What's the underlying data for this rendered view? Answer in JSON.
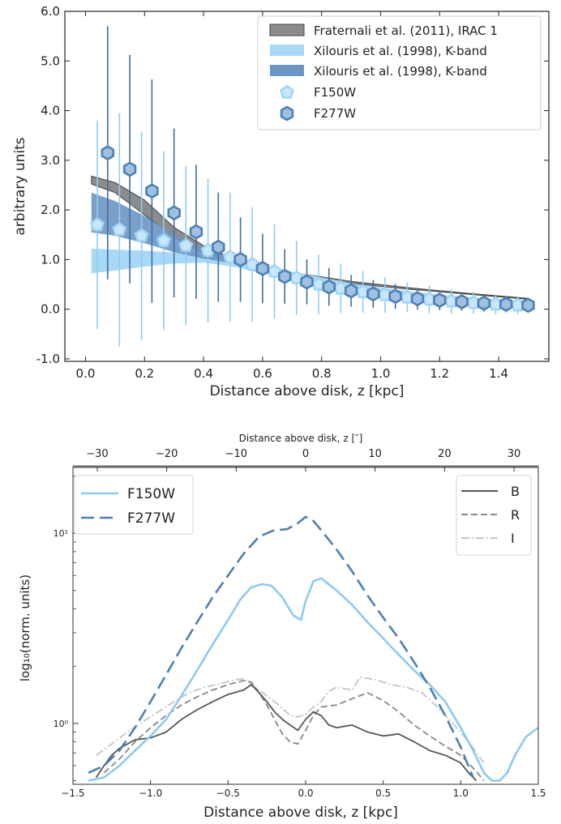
{
  "chart_data": [
    {
      "type": "scatter",
      "title": "",
      "xlabel": "Distance above disk, z [kpc]",
      "ylabel": "arbitrary units",
      "xlim": [
        -0.07,
        1.57
      ],
      "ylim": [
        -1.05,
        6.0
      ],
      "x_ticks": [
        0.0,
        0.2,
        0.4,
        0.6,
        0.8,
        1.0,
        1.2,
        1.4
      ],
      "x_tick_labels": [
        "0.0",
        "0.2",
        "0.4",
        "0.6",
        "0.8",
        "1.0",
        "1.2",
        "1.4"
      ],
      "y_ticks": [
        -1.0,
        0.0,
        1.0,
        2.0,
        3.0,
        4.0,
        5.0,
        6.0
      ],
      "y_tick_labels": [
        "-1.0",
        "0.0",
        "1.0",
        "2.0",
        "3.0",
        "4.0",
        "5.0",
        "6.0"
      ],
      "grid": false,
      "legend_position": "top-right",
      "legend": [
        "Fraternali et al. (2011), IRAC 1",
        "Xilouris et al. (1998), K-band",
        "Xilouris et al. (1998), K-band",
        "F150W",
        "F277W"
      ],
      "bands": [
        {
          "name": "Fraternali et al. (2011), IRAC 1",
          "color": "#8c8c8c",
          "x": [
            0.02,
            0.1,
            0.2,
            0.3,
            0.4,
            0.5,
            0.7,
            0.9,
            1.1,
            1.3,
            1.5
          ],
          "lower": [
            2.52,
            2.35,
            1.9,
            1.45,
            1.12,
            0.92,
            0.68,
            0.52,
            0.4,
            0.3,
            0.2
          ],
          "upper": [
            2.68,
            2.55,
            2.2,
            1.65,
            1.28,
            1.02,
            0.74,
            0.56,
            0.43,
            0.32,
            0.22
          ]
        },
        {
          "name": "Xilouris et al. (1998), K-band",
          "color": "#a9d8f7",
          "x": [
            0.02,
            0.1,
            0.2,
            0.3,
            0.4,
            0.5,
            0.7,
            0.9,
            1.1,
            1.3,
            1.5
          ],
          "lower": [
            0.72,
            0.78,
            0.86,
            0.92,
            0.94,
            0.86,
            0.58,
            0.4,
            0.27,
            0.18,
            0.12
          ],
          "upper": [
            1.22,
            1.2,
            1.18,
            1.14,
            1.1,
            1.0,
            0.76,
            0.52,
            0.36,
            0.24,
            0.16
          ]
        },
        {
          "name": "Xilouris et al. (1998), K-band",
          "color": "#6b96c4",
          "x": [
            0.02,
            0.1,
            0.2,
            0.3,
            0.4,
            0.5
          ],
          "lower": [
            1.55,
            1.48,
            1.33,
            1.15,
            1.02,
            0.92
          ],
          "upper": [
            2.35,
            2.18,
            1.88,
            1.5,
            1.22,
            1.02
          ]
        }
      ],
      "series": [
        {
          "name": "F150W",
          "marker": "pentagon",
          "color": "#9fd3f5",
          "x": [
            0.04,
            0.115,
            0.19,
            0.265,
            0.34,
            0.415,
            0.49,
            0.565,
            0.64,
            0.715,
            0.79,
            0.865,
            0.94,
            1.015,
            1.09,
            1.165,
            1.24,
            1.315,
            1.39,
            1.465
          ],
          "y": [
            1.7,
            1.6,
            1.48,
            1.38,
            1.28,
            1.18,
            1.05,
            0.9,
            0.76,
            0.63,
            0.5,
            0.42,
            0.35,
            0.29,
            0.24,
            0.2,
            0.16,
            0.13,
            0.1,
            0.08
          ],
          "err": [
            2.1,
            2.35,
            2.1,
            1.8,
            1.6,
            1.45,
            1.3,
            1.15,
            0.95,
            0.75,
            0.6,
            0.5,
            0.42,
            0.36,
            0.3,
            0.28,
            0.25,
            0.22,
            0.2,
            0.18
          ]
        },
        {
          "name": "F277W",
          "marker": "hexagon",
          "color": "#4d80b5",
          "x": [
            0.075,
            0.15,
            0.225,
            0.3,
            0.375,
            0.45,
            0.525,
            0.6,
            0.675,
            0.75,
            0.825,
            0.9,
            0.975,
            1.05,
            1.125,
            1.2,
            1.275,
            1.35,
            1.425,
            1.5
          ],
          "y": [
            3.15,
            2.82,
            2.38,
            1.94,
            1.56,
            1.25,
            1.0,
            0.82,
            0.66,
            0.55,
            0.45,
            0.37,
            0.31,
            0.26,
            0.21,
            0.18,
            0.15,
            0.12,
            0.1,
            0.08
          ],
          "err": [
            2.55,
            2.3,
            2.25,
            1.7,
            1.35,
            1.1,
            0.85,
            0.7,
            0.55,
            0.45,
            0.38,
            0.32,
            0.28,
            0.25,
            0.22,
            0.2,
            0.18,
            0.17,
            0.16,
            0.15
          ]
        }
      ]
    },
    {
      "type": "line",
      "title": "",
      "xlabel": "Distance above disk, z [kpc]",
      "x2label": "Distance above disk, z [″]",
      "ylabel": "log₁₀(norm. units)",
      "xlim": [
        -1.5,
        1.5
      ],
      "x2lim": [
        -33.5,
        33.5
      ],
      "ylim_log10": [
        -0.32,
        1.35
      ],
      "yscale": "log",
      "x_ticks": [
        -1.5,
        -1.0,
        -0.5,
        0.0,
        0.5,
        1.0,
        1.5
      ],
      "x_tick_labels": [
        "−1.5",
        "−1.0",
        "−0.5",
        "0.0",
        "0.5",
        "1.0",
        "1.5"
      ],
      "x2_ticks": [
        -30,
        -20,
        -10,
        0,
        10,
        20,
        30
      ],
      "x2_tick_labels": [
        "−30",
        "−20",
        "−10",
        "0",
        "10",
        "20",
        "30"
      ],
      "y_ticks": [
        1,
        10
      ],
      "y_tick_labels": [
        "10⁰",
        "10¹"
      ],
      "grid": false,
      "legend_position": "upper-left and upper-right",
      "legend_left": [
        "F150W",
        "F277W"
      ],
      "legend_right": [
        "B",
        "R",
        "I"
      ],
      "series": [
        {
          "name": "F150W",
          "style": "solid",
          "color": "#8dcaf0",
          "x": [
            -1.4,
            -1.3,
            -1.2,
            -1.1,
            -1.0,
            -0.9,
            -0.8,
            -0.7,
            -0.6,
            -0.5,
            -0.42,
            -0.35,
            -0.28,
            -0.22,
            -0.15,
            -0.08,
            -0.03,
            0.0,
            0.05,
            0.1,
            0.2,
            0.3,
            0.4,
            0.5,
            0.6,
            0.7,
            0.8,
            0.9,
            1.0,
            1.08,
            1.15,
            1.2,
            1.25,
            1.3,
            1.35,
            1.42,
            1.5
          ],
          "y": [
            0.5,
            0.52,
            0.6,
            0.72,
            0.86,
            1.05,
            1.4,
            1.9,
            2.6,
            3.5,
            4.5,
            5.2,
            5.4,
            5.3,
            4.6,
            3.7,
            3.5,
            4.4,
            5.6,
            5.8,
            5.0,
            4.2,
            3.4,
            2.8,
            2.3,
            1.9,
            1.6,
            1.3,
            0.95,
            0.72,
            0.55,
            0.5,
            0.5,
            0.55,
            0.68,
            0.85,
            0.95
          ]
        },
        {
          "name": "F277W",
          "style": "dashed",
          "color": "#4f7faf",
          "x": [
            -1.4,
            -1.3,
            -1.2,
            -1.1,
            -1.0,
            -0.9,
            -0.8,
            -0.7,
            -0.6,
            -0.5,
            -0.4,
            -0.3,
            -0.2,
            -0.12,
            -0.05,
            0.0,
            0.05,
            0.1,
            0.2,
            0.3,
            0.4,
            0.5,
            0.6,
            0.7,
            0.8,
            0.9,
            1.0,
            1.08
          ],
          "y": [
            0.55,
            0.6,
            0.72,
            0.95,
            1.3,
            1.8,
            2.5,
            3.4,
            4.6,
            6.0,
            7.8,
            9.6,
            10.4,
            10.5,
            11.3,
            12.2,
            11.6,
            10.4,
            8.2,
            6.3,
            4.7,
            3.6,
            2.8,
            2.1,
            1.55,
            1.1,
            0.75,
            0.52
          ]
        },
        {
          "name": "B",
          "style": "solid",
          "color": "#555555",
          "x": [
            -1.35,
            -1.3,
            -1.25,
            -1.2,
            -1.1,
            -1.0,
            -0.9,
            -0.8,
            -0.7,
            -0.6,
            -0.5,
            -0.4,
            -0.35,
            -0.3,
            -0.25,
            -0.2,
            -0.15,
            -0.1,
            -0.05,
            0.0,
            0.05,
            0.1,
            0.15,
            0.2,
            0.3,
            0.4,
            0.5,
            0.6,
            0.7,
            0.8,
            0.9,
            1.0,
            1.05,
            1.1
          ],
          "y": [
            0.52,
            0.6,
            0.68,
            0.74,
            0.82,
            0.84,
            0.9,
            1.05,
            1.18,
            1.3,
            1.42,
            1.5,
            1.6,
            1.45,
            1.3,
            1.15,
            1.05,
            0.98,
            0.92,
            1.05,
            1.15,
            1.1,
            0.98,
            0.95,
            0.98,
            0.9,
            0.86,
            0.88,
            0.8,
            0.72,
            0.68,
            0.62,
            0.55,
            0.5
          ]
        },
        {
          "name": "R",
          "style": "dashed",
          "color": "#888888",
          "x": [
            -1.3,
            -1.2,
            -1.1,
            -1.0,
            -0.9,
            -0.8,
            -0.7,
            -0.6,
            -0.5,
            -0.4,
            -0.35,
            -0.3,
            -0.25,
            -0.2,
            -0.15,
            -0.1,
            -0.05,
            0.0,
            0.05,
            0.1,
            0.2,
            0.3,
            0.4,
            0.5,
            0.6,
            0.7,
            0.8,
            0.9,
            1.0,
            1.1,
            1.15
          ],
          "y": [
            0.55,
            0.65,
            0.8,
            0.95,
            1.1,
            1.25,
            1.38,
            1.5,
            1.6,
            1.68,
            1.65,
            1.45,
            1.25,
            1.05,
            0.88,
            0.8,
            0.78,
            0.92,
            1.1,
            1.22,
            1.25,
            1.35,
            1.45,
            1.32,
            1.15,
            0.98,
            0.86,
            0.76,
            0.68,
            0.56,
            0.5
          ]
        },
        {
          "name": "I",
          "style": "dashdot",
          "color": "#c4c4c4",
          "x": [
            -1.35,
            -1.25,
            -1.15,
            -1.05,
            -0.95,
            -0.85,
            -0.75,
            -0.65,
            -0.55,
            -0.45,
            -0.4,
            -0.3,
            -0.2,
            -0.15,
            -0.1,
            -0.05,
            0.0,
            0.05,
            0.1,
            0.15,
            0.2,
            0.3,
            0.35,
            0.45,
            0.55,
            0.65,
            0.75,
            0.85,
            0.95,
            1.05,
            1.15
          ],
          "y": [
            0.68,
            0.78,
            0.9,
            1.02,
            1.15,
            1.3,
            1.45,
            1.55,
            1.62,
            1.7,
            1.72,
            1.5,
            1.3,
            1.2,
            1.1,
            1.08,
            1.12,
            1.22,
            1.3,
            1.48,
            1.55,
            1.5,
            1.75,
            1.7,
            1.6,
            1.55,
            1.45,
            1.22,
            1.0,
            0.8,
            0.62
          ]
        }
      ]
    }
  ]
}
